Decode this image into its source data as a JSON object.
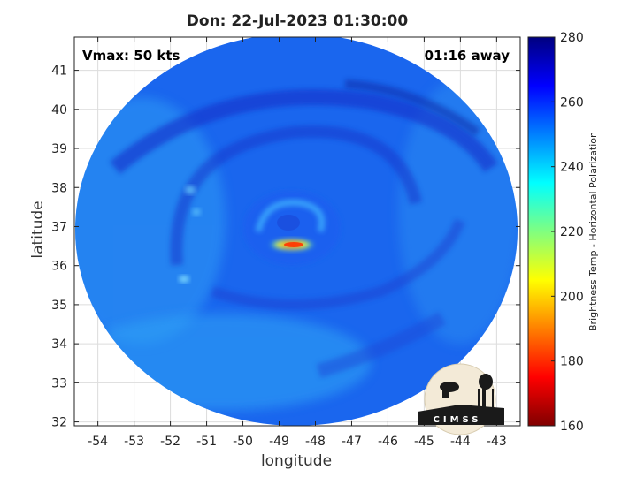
{
  "title": "Don: 22-Jul-2023 01:30:00",
  "annotations": {
    "vmax": "Vmax: 50 kts",
    "time_away": "01:16 away"
  },
  "logo_text": "CIMSS",
  "colors": {
    "colormap": [
      "#800000",
      "#ff0000",
      "#ff8000",
      "#ffff00",
      "#80ff80",
      "#00ffff",
      "#0080ff",
      "#0000ff",
      "#000080"
    ]
  },
  "chart_data": {
    "type": "heatmap",
    "title": "Don: 22-Jul-2023 01:30:00",
    "xlabel": "longitude",
    "ylabel": "latitude",
    "xlim": [
      -54.65,
      -42.35
    ],
    "ylim": [
      31.9,
      41.85
    ],
    "xticks": [
      -54,
      -53,
      -52,
      -51,
      -50,
      -49,
      -48,
      -47,
      -46,
      -45,
      -44,
      -43
    ],
    "yticks": [
      32,
      33,
      34,
      35,
      36,
      37,
      38,
      39,
      40,
      41
    ],
    "grid": true,
    "storm_center": {
      "lon": -48.8,
      "lat": 37.0
    },
    "coldest_feature": {
      "lon": -48.6,
      "lat": 36.55,
      "value": 185
    },
    "colorbar": {
      "label": "Brightness Temp - Horizontal Polarization",
      "min": 160,
      "max": 280,
      "ticks": [
        160,
        180,
        200,
        220,
        240,
        260,
        280
      ]
    }
  }
}
